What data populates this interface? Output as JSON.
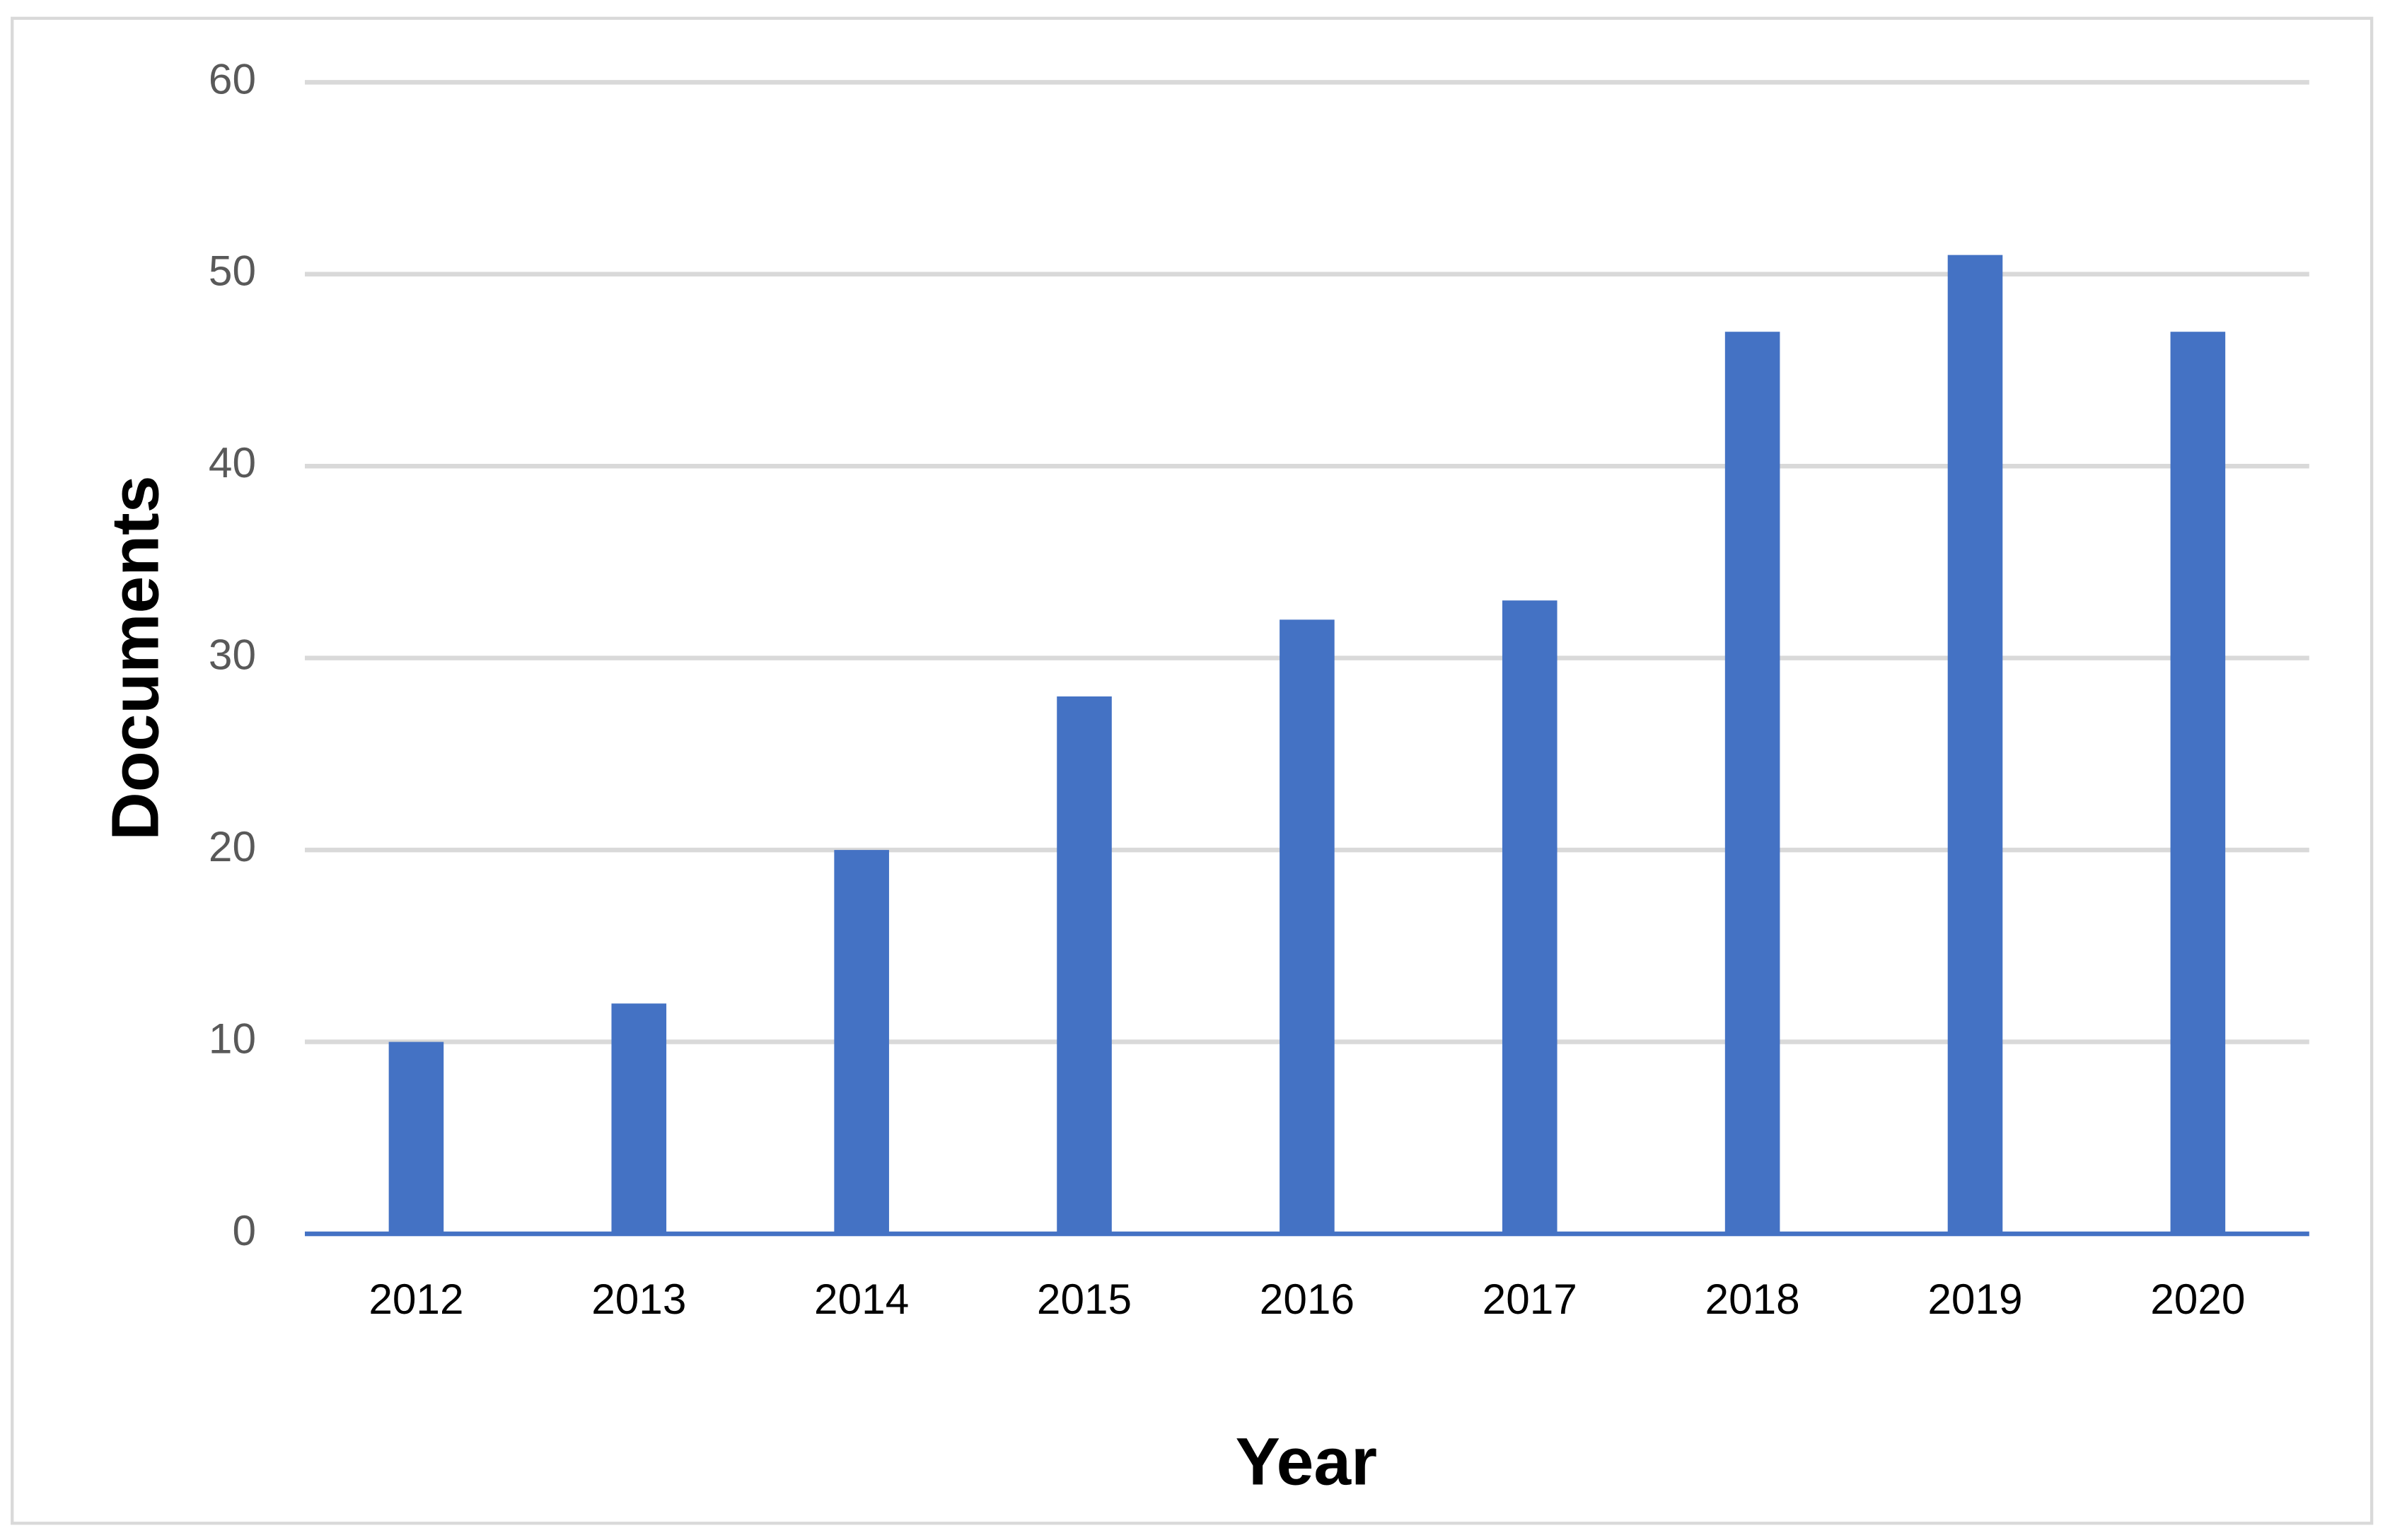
{
  "chart_data": {
    "type": "bar",
    "x_label": "Year",
    "y_label": "Documents",
    "categories": [
      "2012",
      "2013",
      "2014",
      "2015",
      "2016",
      "2017",
      "2018",
      "2019",
      "2020"
    ],
    "values": [
      10,
      12,
      20,
      28,
      32,
      33,
      47,
      51,
      47
    ],
    "color": "#4472c4",
    "ylim": [
      0,
      60
    ],
    "yticks": [
      0,
      10,
      20,
      30,
      40,
      50,
      60
    ],
    "grid": true
  }
}
